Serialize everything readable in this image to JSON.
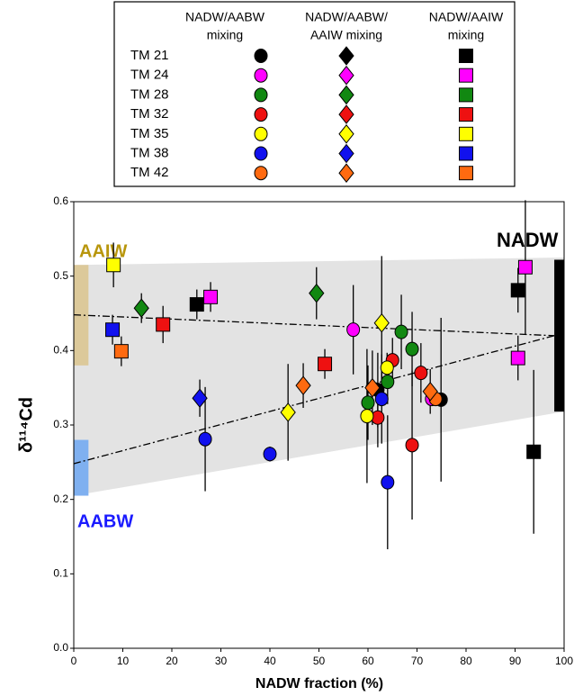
{
  "chart_data": {
    "type": "scatter",
    "x_label": "NADW fraction (%)",
    "y_label": "δ¹¹⁴Cd",
    "xlim": [
      0,
      100
    ],
    "ylim": [
      0,
      0.6
    ],
    "xticks": [
      0,
      10,
      20,
      30,
      40,
      50,
      60,
      70,
      80,
      90,
      100
    ],
    "yticks": [
      {
        "value": 0,
        "label": "0.0"
      },
      0.1,
      0.2,
      0.3,
      0.4,
      0.5,
      0.6
    ],
    "marker_columns": [
      {
        "label": [
          "NADW/AABW",
          "mixing"
        ],
        "marker": "circle"
      },
      {
        "label": [
          "NADW/AABW/",
          "AAIW mixing"
        ],
        "marker": "diamond"
      },
      {
        "label": [
          "NADW/AAIW",
          "mixing"
        ],
        "marker": "square"
      }
    ],
    "shaded_region": {
      "color": "#e3e3e3",
      "x": [
        0,
        100,
        100,
        0
      ],
      "y": [
        0.515,
        0.525,
        0.318,
        0.205
      ]
    },
    "endmembers": [
      {
        "label": "AAIW",
        "color": "#dcc99a",
        "label_color": "#b8960c",
        "x": [
          0,
          3
        ],
        "y": [
          0.38,
          0.515
        ]
      },
      {
        "label": "AABW",
        "color": "#7fb0f0",
        "label_color": "#1a1aff",
        "x": [
          0,
          3
        ],
        "y": [
          0.205,
          0.28
        ]
      },
      {
        "label": "NADW",
        "color": "#000000",
        "label_color": "#000000",
        "x": [
          98,
          100
        ],
        "y": [
          0.318,
          0.522
        ]
      }
    ],
    "mixing_lines": [
      {
        "x": [
          0,
          98
        ],
        "y": [
          0.448,
          0.42
        ]
      },
      {
        "x": [
          0,
          98
        ],
        "y": [
          0.248,
          0.42
        ]
      }
    ],
    "series": [
      {
        "name": "TM 21",
        "color": "#000000",
        "groups": [
          {
            "x": [
              62,
              74.9
            ],
            "y": [
              0.347,
              0.334
            ],
            "err": [
              0.05,
              0.11
            ]
          },
          {
            "x": [],
            "y": [],
            "err": []
          },
          {
            "x": [
              25.1,
              90.6,
              93.8
            ],
            "y": [
              0.462,
              0.481,
              0.264
            ],
            "err": [
              0.02,
              0.03,
              0.11
            ]
          }
        ]
      },
      {
        "name": "TM 24",
        "color": "#ff00ff",
        "groups": [
          {
            "x": [
              57,
              73
            ],
            "y": [
              0.428,
              0.335
            ],
            "err": [
              0.06,
              null
            ]
          },
          {
            "x": [],
            "y": [],
            "err": []
          },
          {
            "x": [
              27.9,
              92.1,
              90.6
            ],
            "y": [
              0.472,
              0.512,
              0.39
            ],
            "err": [
              0.02,
              0.09,
              0.03
            ]
          }
        ]
      },
      {
        "name": "TM 28",
        "color": "#118811",
        "groups": [
          {
            "x": [
              66.8,
              69,
              64,
              60
            ],
            "y": [
              0.425,
              0.402,
              0.358,
              0.33
            ],
            "err": [
              0.05,
              0.05,
              0.03,
              0.05
            ]
          },
          {
            "x": [
              13.8,
              49.5
            ],
            "y": [
              0.457,
              0.477
            ],
            "err": [
              0.02,
              0.035
            ]
          },
          {
            "x": [],
            "y": [],
            "err": []
          }
        ]
      },
      {
        "name": "TM 32",
        "color": "#ee1111",
        "groups": [
          {
            "x": [
              65,
              70.8,
              62,
              69
            ],
            "y": [
              0.387,
              0.37,
              0.31,
              0.273
            ],
            "err": [
              0.03,
              0.04,
              0.04,
              0.1
            ]
          },
          {
            "x": [],
            "y": [],
            "err": []
          },
          {
            "x": [
              18.2,
              51.2
            ],
            "y": [
              0.435,
              0.382
            ],
            "err": [
              0.025,
              0.02
            ]
          }
        ]
      },
      {
        "name": "TM 35",
        "color": "#ffff00",
        "groups": [
          {
            "x": [
              63.9,
              59.8
            ],
            "y": [
              0.377,
              0.312
            ],
            "err": [
              0.02,
              0.09
            ]
          },
          {
            "x": [
              43.7,
              62.8
            ],
            "y": [
              0.317,
              0.437
            ],
            "err": [
              0.065,
              0.09
            ]
          },
          {
            "x": [
              8.1
            ],
            "y": [
              0.515
            ],
            "err": [
              0.03
            ]
          }
        ]
      },
      {
        "name": "TM 38",
        "color": "#1111ee",
        "groups": [
          {
            "x": [
              26.8,
              40,
              64,
              62.8
            ],
            "y": [
              0.281,
              0.261,
              0.223,
              0.335
            ],
            "err": [
              0.07,
              0.01,
              0.09,
              0.06
            ]
          },
          {
            "x": [
              25.7
            ],
            "y": [
              0.336
            ],
            "err": [
              0.025
            ]
          },
          {
            "x": [
              7.9
            ],
            "y": [
              0.428
            ],
            "err": [
              0.02
            ]
          }
        ]
      },
      {
        "name": "TM 42",
        "color": "#ff6a10",
        "groups": [
          {
            "x": [
              73.8
            ],
            "y": [
              0.335
            ],
            "err": [
              null
            ]
          },
          {
            "x": [
              46.8,
              60.9,
              72.7
            ],
            "y": [
              0.353,
              0.35,
              0.345
            ],
            "err": [
              0.03,
              0.05,
              0.03
            ]
          },
          {
            "x": [
              9.7
            ],
            "y": [
              0.399
            ],
            "err": [
              0.02
            ]
          }
        ]
      }
    ]
  }
}
